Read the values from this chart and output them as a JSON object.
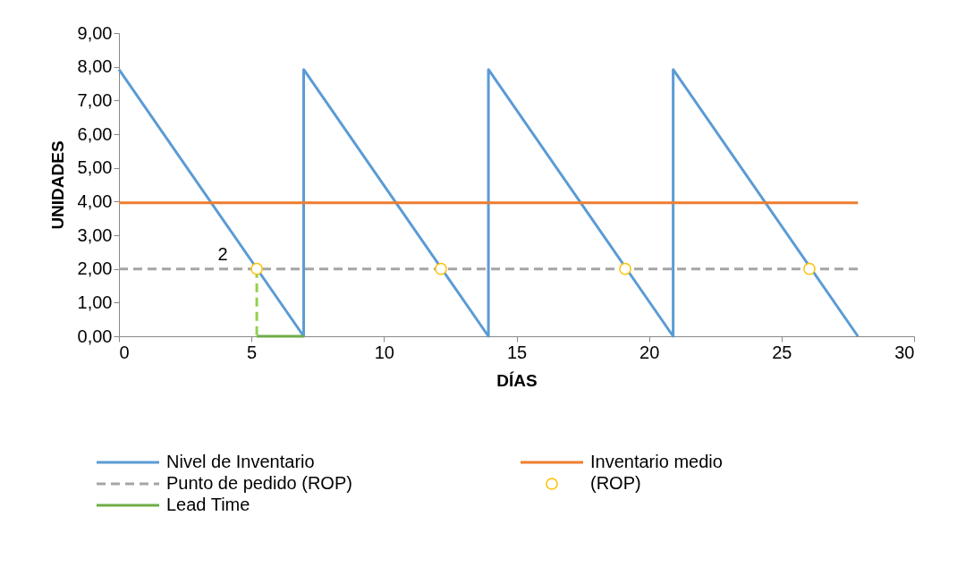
{
  "chart_data": {
    "type": "line",
    "xlabel": "DÍAS",
    "ylabel": "UNIDADES",
    "xlim": [
      0,
      30
    ],
    "xticks": [
      0,
      5,
      10,
      15,
      20,
      25,
      30
    ],
    "ylim": [
      0,
      9
    ],
    "yticks": [
      {
        "value": 0,
        "label": "0,00"
      },
      {
        "value": 1,
        "label": "1,00"
      },
      {
        "value": 2,
        "label": "2,00"
      },
      {
        "value": 3,
        "label": "3,00"
      },
      {
        "value": 4,
        "label": "4,00"
      },
      {
        "value": 5,
        "label": "5,00"
      },
      {
        "value": 6,
        "label": "6,00"
      },
      {
        "value": 7,
        "label": "7,00"
      },
      {
        "value": 8,
        "label": "8,00"
      },
      {
        "value": 9,
        "label": "9,00"
      }
    ],
    "grid": false,
    "legend": "bottom",
    "annotations": [
      {
        "text": "2",
        "x": 5.2,
        "y": 2
      }
    ],
    "series": [
      {
        "name": "Nivel de Inventario",
        "color": "#5b9bd5",
        "line_style": "solid",
        "x": [
          0,
          6.97,
          6.97,
          13.94,
          13.94,
          20.91,
          20.91,
          27.88
        ],
        "values": [
          7.92,
          0,
          7.92,
          0,
          7.92,
          0,
          7.92,
          0
        ]
      },
      {
        "name": "Inventario medio",
        "color": "#ed7d31",
        "line_style": "solid",
        "x": [
          0,
          27.88
        ],
        "values": [
          3.96,
          3.96
        ]
      },
      {
        "name": "Punto de pedido (ROP)",
        "color": "#a5a5a5",
        "line_style": "dashed",
        "x": [
          0,
          27.88
        ],
        "values": [
          2,
          2
        ]
      },
      {
        "name": "(ROP)",
        "color": "#ffc000",
        "type": "scatter",
        "marker": "circle",
        "x": [
          5.2,
          12.15,
          19.1,
          26.05
        ],
        "values": [
          2,
          2,
          2,
          2
        ]
      },
      {
        "name": "Lead Time",
        "color": "#70ad47",
        "line_style": "solid",
        "x": [
          5.2,
          6.97
        ],
        "values": [
          0,
          0
        ]
      },
      {
        "color": "#92d050",
        "line_style": "dashed",
        "x": [
          5.2,
          5.2
        ],
        "values": [
          2,
          0
        ]
      }
    ]
  }
}
